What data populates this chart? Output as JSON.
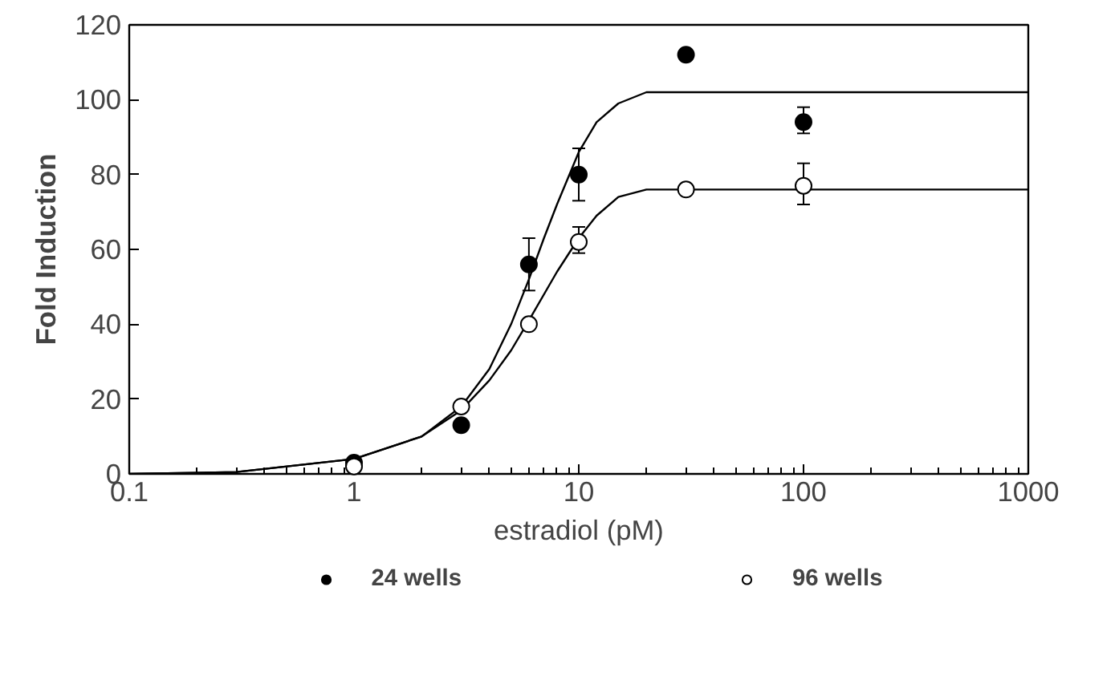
{
  "chart_data": {
    "type": "scatter",
    "xlabel": "estradiol (pM)",
    "ylabel": "Fold Induction",
    "log": "x",
    "xlim": [
      0.1,
      1000
    ],
    "xticks": [
      0.1,
      1,
      10,
      100,
      1000
    ],
    "ylim": [
      0,
      120
    ],
    "yticks": [
      0,
      20,
      40,
      60,
      80,
      100,
      120
    ],
    "grid": false,
    "legend": "bottom",
    "series": [
      {
        "name": "24 wells",
        "color": "#000000",
        "marker": "circle",
        "x": [
          1,
          3,
          6,
          10,
          30,
          100
        ],
        "values": [
          3,
          13,
          56,
          80,
          112,
          94
        ],
        "errors": [
          null,
          null,
          [
            49,
            63
          ],
          [
            73,
            87
          ],
          null,
          [
            91,
            98
          ]
        ]
      },
      {
        "name": "96 wells",
        "color": "#000000",
        "marker": "circle_open",
        "x": [
          1,
          3,
          6,
          10,
          30,
          100
        ],
        "values": [
          2,
          18,
          40,
          62,
          76,
          77
        ],
        "errors": [
          null,
          null,
          null,
          [
            59,
            66
          ],
          null,
          [
            72,
            83
          ]
        ]
      },
      {
        "type": "line",
        "color": "#000000",
        "marker": "none",
        "x": [
          0.1,
          0.3,
          1,
          2,
          3,
          4,
          5,
          6,
          7,
          8,
          10,
          12,
          15,
          20,
          1000
        ],
        "values": [
          0,
          0.5,
          4,
          10,
          18,
          28,
          40,
          52,
          63,
          72,
          86,
          94,
          99,
          102,
          102
        ]
      },
      {
        "type": "line",
        "color": "#000000",
        "marker": "none",
        "x": [
          0.1,
          0.3,
          1,
          2,
          3,
          4,
          5,
          6,
          8,
          10,
          12,
          15,
          20,
          1000
        ],
        "values": [
          0,
          0.5,
          4,
          10,
          17,
          25,
          33,
          41,
          54,
          63,
          69,
          74,
          76,
          76
        ]
      }
    ]
  }
}
